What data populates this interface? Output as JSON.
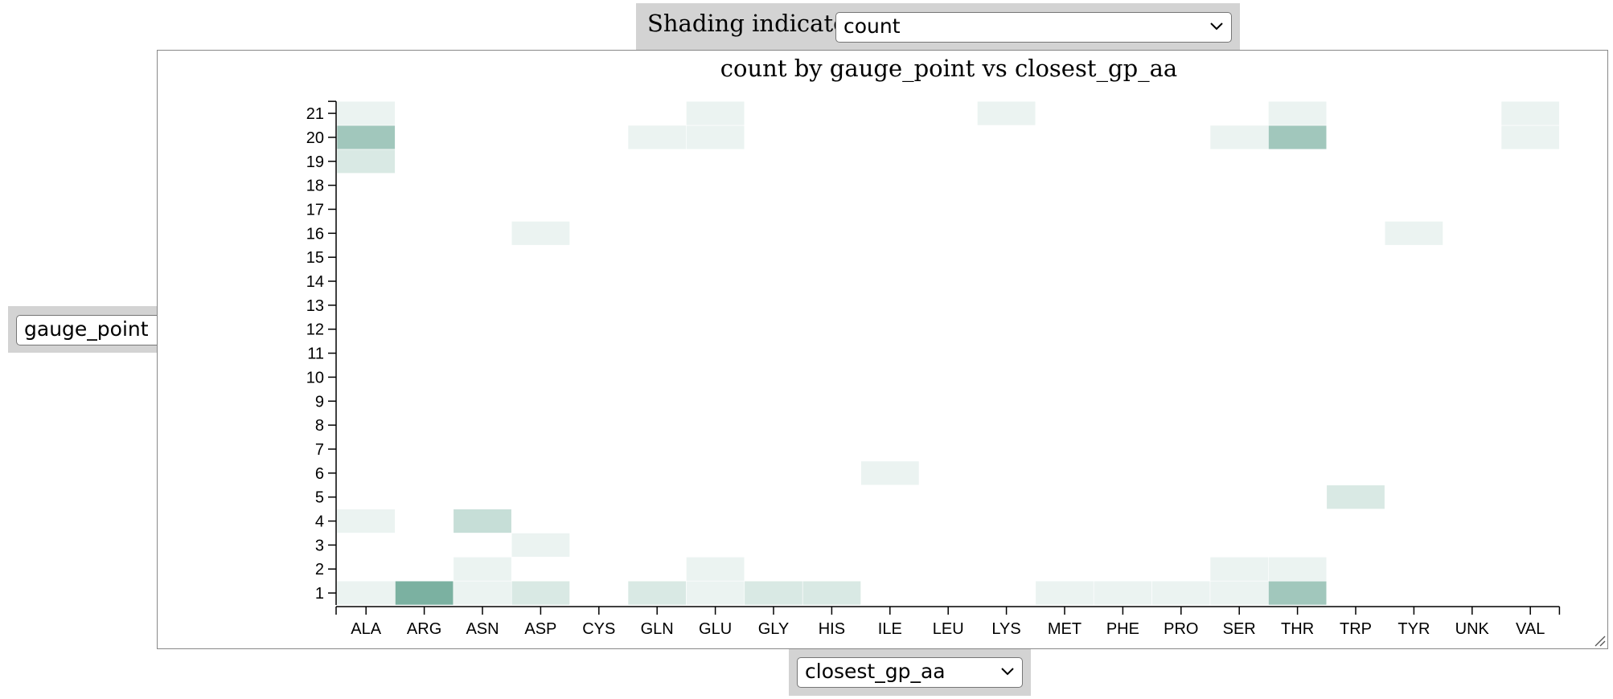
{
  "shading_control": {
    "label": "Shading indicates:",
    "selected": "count"
  },
  "y_selector": {
    "selected": "gauge_point"
  },
  "x_selector": {
    "selected": "closest_gp_aa"
  },
  "colors": {
    "cell": "#5a9e8a",
    "control_bg": "#d3d3d3"
  },
  "chart_data": {
    "type": "heatmap",
    "title": "count by gauge_point vs closest_gp_aa",
    "x_categories": [
      "ALA",
      "ARG",
      "ASN",
      "ASP",
      "CYS",
      "GLN",
      "GLU",
      "GLY",
      "HIS",
      "ILE",
      "LEU",
      "LYS",
      "MET",
      "PHE",
      "PRO",
      "SER",
      "THR",
      "TRP",
      "TYR",
      "UNK",
      "VAL"
    ],
    "y_categories": [
      "1",
      "2",
      "3",
      "4",
      "5",
      "6",
      "7",
      "8",
      "9",
      "10",
      "11",
      "12",
      "13",
      "14",
      "15",
      "16",
      "17",
      "18",
      "19",
      "20",
      "21"
    ],
    "xlabel": "closest_gp_aa",
    "ylabel": "gauge_point",
    "value": "count",
    "max_value": 7,
    "cells": [
      {
        "x": "ALA",
        "y": "1",
        "v": 1
      },
      {
        "x": "ALA",
        "y": "4",
        "v": 1
      },
      {
        "x": "ALA",
        "y": "19",
        "v": 2
      },
      {
        "x": "ALA",
        "y": "20",
        "v": 5
      },
      {
        "x": "ALA",
        "y": "21",
        "v": 1
      },
      {
        "x": "ARG",
        "y": "1",
        "v": 7
      },
      {
        "x": "ASN",
        "y": "1",
        "v": 1
      },
      {
        "x": "ASN",
        "y": "2",
        "v": 1
      },
      {
        "x": "ASN",
        "y": "4",
        "v": 3
      },
      {
        "x": "ASP",
        "y": "1",
        "v": 2
      },
      {
        "x": "ASP",
        "y": "3",
        "v": 1
      },
      {
        "x": "ASP",
        "y": "16",
        "v": 1
      },
      {
        "x": "GLN",
        "y": "1",
        "v": 2
      },
      {
        "x": "GLN",
        "y": "20",
        "v": 1
      },
      {
        "x": "GLU",
        "y": "1",
        "v": 1
      },
      {
        "x": "GLU",
        "y": "2",
        "v": 1
      },
      {
        "x": "GLU",
        "y": "20",
        "v": 1
      },
      {
        "x": "GLU",
        "y": "21",
        "v": 1
      },
      {
        "x": "GLY",
        "y": "1",
        "v": 2
      },
      {
        "x": "HIS",
        "y": "1",
        "v": 2
      },
      {
        "x": "ILE",
        "y": "6",
        "v": 1
      },
      {
        "x": "LYS",
        "y": "21",
        "v": 1
      },
      {
        "x": "MET",
        "y": "1",
        "v": 1
      },
      {
        "x": "PHE",
        "y": "1",
        "v": 1
      },
      {
        "x": "PRO",
        "y": "1",
        "v": 1
      },
      {
        "x": "SER",
        "y": "1",
        "v": 1
      },
      {
        "x": "SER",
        "y": "2",
        "v": 1
      },
      {
        "x": "SER",
        "y": "20",
        "v": 1
      },
      {
        "x": "THR",
        "y": "1",
        "v": 5
      },
      {
        "x": "THR",
        "y": "2",
        "v": 1
      },
      {
        "x": "THR",
        "y": "20",
        "v": 5
      },
      {
        "x": "THR",
        "y": "21",
        "v": 1
      },
      {
        "x": "TRP",
        "y": "5",
        "v": 2
      },
      {
        "x": "TYR",
        "y": "16",
        "v": 1
      },
      {
        "x": "VAL",
        "y": "20",
        "v": 1
      },
      {
        "x": "VAL",
        "y": "21",
        "v": 1
      }
    ]
  }
}
